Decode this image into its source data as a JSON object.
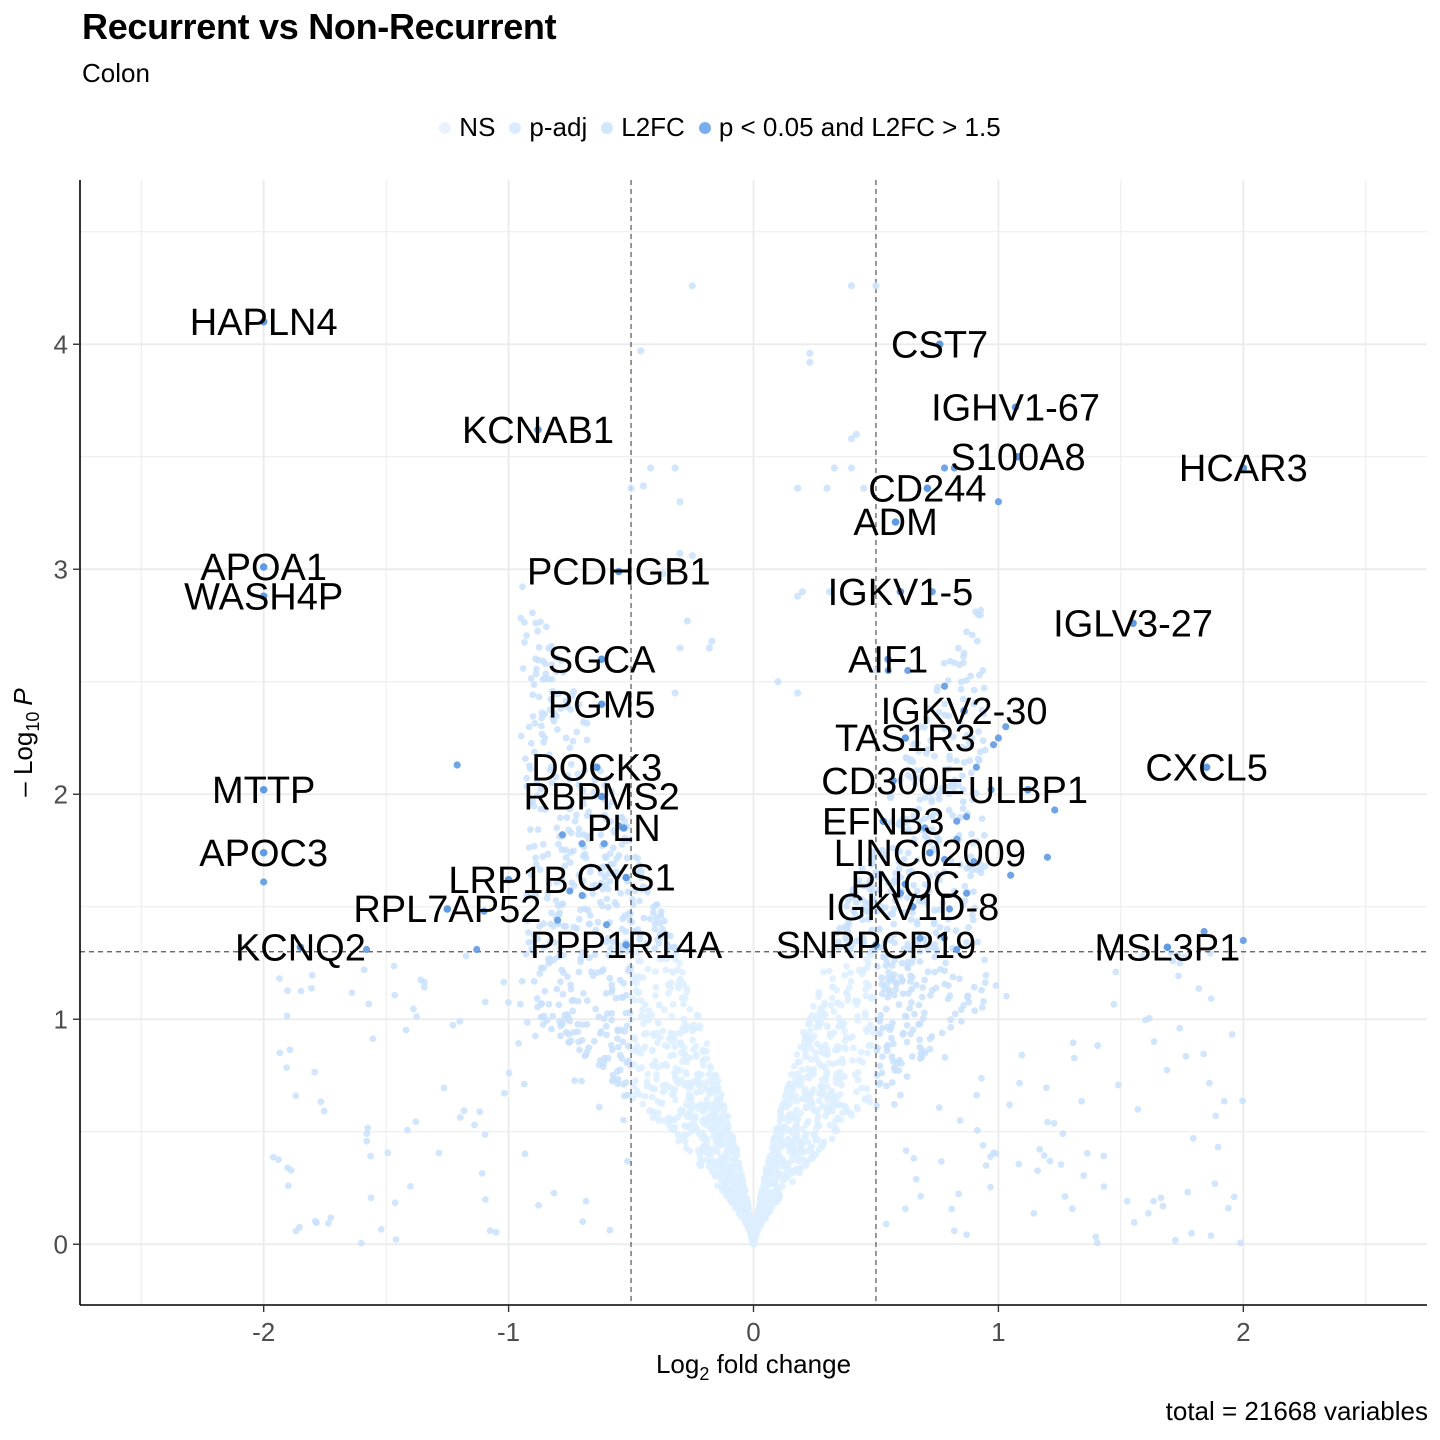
{
  "header": {
    "title": "Recurrent vs Non-Recurrent",
    "subtitle": "Colon"
  },
  "caption": "total = 21668 variables",
  "legend": {
    "items": [
      {
        "label": "NS",
        "color": "#eaf3ff"
      },
      {
        "label": "p-adj",
        "color": "#dcecff"
      },
      {
        "label": "L2FC",
        "color": "#d2e6fc"
      },
      {
        "label": "p < 0.05 and L2FC > 1.5",
        "color": "#78aef0"
      }
    ]
  },
  "colors": {
    "ns": "#ddeeff",
    "light": "#c9e1fb",
    "sig": "#5f9be3",
    "grid": "#ebebeb",
    "cutoff_line": "#555555"
  },
  "chart_data": {
    "type": "scatter",
    "title": "Recurrent vs Non-Recurrent",
    "subtitle": "Colon",
    "xlabel": "Log2 fold change",
    "ylabel": "-Log10 P",
    "xlabel_main": "Log",
    "xlabel_sub": "2",
    "xlabel_rest": " fold change",
    "ylabel_prefix": "– Log",
    "ylabel_sub": "10",
    "ylabel_var": "P",
    "xlim": [
      -2.75,
      2.75
    ],
    "ylim": [
      -0.27,
      4.73
    ],
    "x_ticks": [
      -2,
      -1,
      0,
      1,
      2
    ],
    "x_tick_labels": [
      "-2",
      "-1",
      "0",
      "1",
      "2"
    ],
    "y_ticks": [
      0,
      1,
      2,
      3,
      4
    ],
    "y_tick_labels": [
      "0",
      "1",
      "2",
      "3",
      "4"
    ],
    "grid": true,
    "legend_position": "top",
    "cutoffs": {
      "log2fc": [
        -0.5,
        0.5
      ],
      "neg_log10_p": 1.3
    },
    "labeled_points": [
      {
        "gene": "HAPLN4",
        "x": -2.0,
        "y": 4.1
      },
      {
        "gene": "KCNAB1",
        "x": -0.88,
        "y": 3.62
      },
      {
        "gene": "APOA1",
        "x": -2.0,
        "y": 3.01
      },
      {
        "gene": "WASH4P",
        "x": -2.0,
        "y": 2.88
      },
      {
        "gene": "PCDHGB1",
        "x": -0.55,
        "y": 2.99
      },
      {
        "gene": "SGCA",
        "x": -0.62,
        "y": 2.6
      },
      {
        "gene": "PGM5",
        "x": -0.62,
        "y": 2.4
      },
      {
        "gene": "DOCK3",
        "x": -0.64,
        "y": 2.12
      },
      {
        "gene": "RBPMS2",
        "x": -0.62,
        "y": 1.99
      },
      {
        "gene": "PLN",
        "x": -0.53,
        "y": 1.85
      },
      {
        "gene": "LRP1B",
        "x": -1.0,
        "y": 1.62
      },
      {
        "gene": "CYS1",
        "x": -0.52,
        "y": 1.63
      },
      {
        "gene": "RPL7AP52",
        "x": -1.25,
        "y": 1.49
      },
      {
        "gene": "PPP1R14A",
        "x": -0.52,
        "y": 1.33
      },
      {
        "gene": "MTTP",
        "x": -2.0,
        "y": 2.02
      },
      {
        "gene": "APOC3",
        "x": -2.0,
        "y": 1.74
      },
      {
        "gene": "KCNQ2",
        "x": -1.85,
        "y": 1.32
      },
      {
        "gene": "CST7",
        "x": 0.76,
        "y": 4.0
      },
      {
        "gene": "IGHV1-67",
        "x": 1.07,
        "y": 3.72
      },
      {
        "gene": "S100A8",
        "x": 1.08,
        "y": 3.5
      },
      {
        "gene": "HCAR3",
        "x": 2.0,
        "y": 3.45
      },
      {
        "gene": "CD244",
        "x": 0.71,
        "y": 3.36
      },
      {
        "gene": "ADM",
        "x": 0.58,
        "y": 3.21
      },
      {
        "gene": "IGKV1-5",
        "x": 0.6,
        "y": 2.9
      },
      {
        "gene": "IGLV3-27",
        "x": 1.55,
        "y": 2.76
      },
      {
        "gene": "AIF1",
        "x": 0.55,
        "y": 2.6
      },
      {
        "gene": "IGKV2-30",
        "x": 0.86,
        "y": 2.37
      },
      {
        "gene": "TAS1R3",
        "x": 0.62,
        "y": 2.25
      },
      {
        "gene": "CD300E",
        "x": 0.57,
        "y": 2.06
      },
      {
        "gene": "ULBP1",
        "x": 1.12,
        "y": 2.02
      },
      {
        "gene": "CXCL5",
        "x": 1.85,
        "y": 2.12
      },
      {
        "gene": "EFNB3",
        "x": 0.53,
        "y": 1.88
      },
      {
        "gene": "LINC02009",
        "x": 0.72,
        "y": 1.74
      },
      {
        "gene": "PNOC",
        "x": 0.62,
        "y": 1.6
      },
      {
        "gene": "IGKV1D-8",
        "x": 0.65,
        "y": 1.5
      },
      {
        "gene": "SNRPCP19",
        "x": 0.5,
        "y": 1.33
      },
      {
        "gene": "MSL3P1",
        "x": 1.69,
        "y": 1.32
      }
    ],
    "extra_points": [
      {
        "x": -0.25,
        "y": 4.26
      },
      {
        "x": 0.4,
        "y": 4.26
      },
      {
        "x": 0.5,
        "y": 4.26
      },
      {
        "x": -0.46,
        "y": 3.97
      },
      {
        "x": 0.23,
        "y": 3.96
      },
      {
        "x": 0.23,
        "y": 3.92
      },
      {
        "x": 0.42,
        "y": 3.6
      },
      {
        "x": 0.4,
        "y": 3.58
      },
      {
        "x": -0.42,
        "y": 3.45
      },
      {
        "x": -0.32,
        "y": 3.45
      },
      {
        "x": 0.33,
        "y": 3.45
      },
      {
        "x": 0.4,
        "y": 3.45
      },
      {
        "x": 0.78,
        "y": 3.45
      },
      {
        "x": 0.82,
        "y": 3.45
      },
      {
        "x": -0.45,
        "y": 3.37
      },
      {
        "x": -0.5,
        "y": 3.36
      },
      {
        "x": -0.3,
        "y": 3.3
      },
      {
        "x": 0.18,
        "y": 3.36
      },
      {
        "x": 0.3,
        "y": 3.36
      },
      {
        "x": 0.45,
        "y": 3.36
      },
      {
        "x": 1.0,
        "y": 3.3
      },
      {
        "x": -0.3,
        "y": 3.07
      },
      {
        "x": -0.25,
        "y": 3.06
      },
      {
        "x": -0.37,
        "y": 2.98
      },
      {
        "x": 0.18,
        "y": 2.88
      },
      {
        "x": 0.2,
        "y": 2.9
      },
      {
        "x": 0.31,
        "y": 2.9
      },
      {
        "x": 0.73,
        "y": 2.9
      },
      {
        "x": -0.27,
        "y": 2.77
      },
      {
        "x": -0.17,
        "y": 2.68
      },
      {
        "x": -0.3,
        "y": 2.65
      },
      {
        "x": -0.18,
        "y": 2.65
      },
      {
        "x": 0.55,
        "y": 2.55
      },
      {
        "x": 0.5,
        "y": 2.55
      },
      {
        "x": 0.63,
        "y": 2.55
      },
      {
        "x": 0.1,
        "y": 2.5
      },
      {
        "x": 0.18,
        "y": 2.45
      },
      {
        "x": -0.32,
        "y": 2.45
      },
      {
        "x": 0.78,
        "y": 2.48
      },
      {
        "x": 1.03,
        "y": 2.3
      },
      {
        "x": 1.0,
        "y": 2.25
      },
      {
        "x": 0.98,
        "y": 2.22
      },
      {
        "x": -1.21,
        "y": 2.13
      },
      {
        "x": 0.91,
        "y": 2.12
      },
      {
        "x": 0.97,
        "y": 2.02
      },
      {
        "x": 1.23,
        "y": 1.93
      },
      {
        "x": 1.2,
        "y": 1.72
      },
      {
        "x": 1.05,
        "y": 1.64
      },
      {
        "x": 0.87,
        "y": 1.9
      },
      {
        "x": 0.83,
        "y": 1.88
      },
      {
        "x": -2.0,
        "y": 1.61
      },
      {
        "x": -1.1,
        "y": 1.48
      },
      {
        "x": -0.8,
        "y": 1.44
      },
      {
        "x": -0.6,
        "y": 1.42
      },
      {
        "x": -1.13,
        "y": 1.31
      },
      {
        "x": -1.58,
        "y": 1.31
      },
      {
        "x": -0.75,
        "y": 1.57
      },
      {
        "x": -0.7,
        "y": 1.55
      },
      {
        "x": 0.87,
        "y": 1.56
      },
      {
        "x": 0.8,
        "y": 1.49
      },
      {
        "x": 0.6,
        "y": 1.56
      },
      {
        "x": 0.68,
        "y": 1.36
      },
      {
        "x": 0.83,
        "y": 1.31
      },
      {
        "x": 0.78,
        "y": 1.36
      },
      {
        "x": 2.0,
        "y": 1.35
      },
      {
        "x": 1.84,
        "y": 1.39
      },
      {
        "x": -0.78,
        "y": 1.82
      },
      {
        "x": -0.7,
        "y": 1.78
      },
      {
        "x": -0.61,
        "y": 1.78
      },
      {
        "x": -0.55,
        "y": 1.86
      },
      {
        "x": 0.7,
        "y": 1.85
      },
      {
        "x": 0.83,
        "y": 1.8
      },
      {
        "x": 0.78,
        "y": 1.71
      },
      {
        "x": 0.9,
        "y": 1.7
      }
    ]
  }
}
